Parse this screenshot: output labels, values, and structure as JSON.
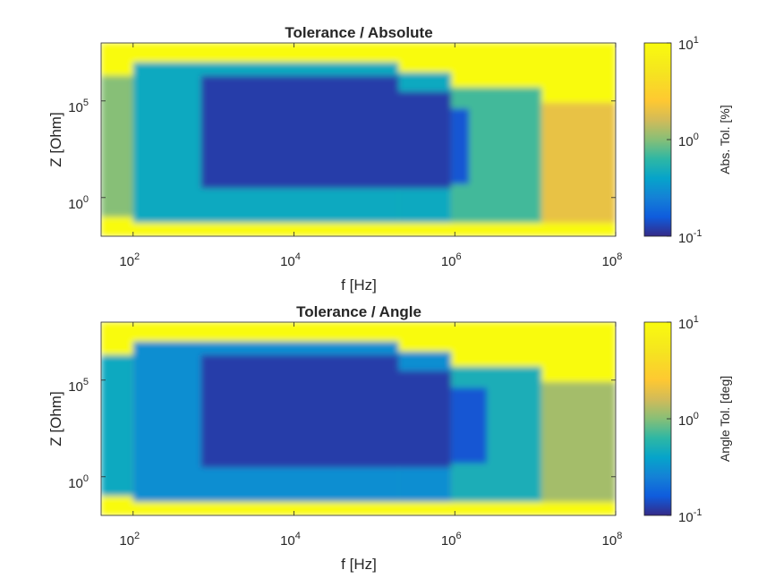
{
  "chart_data": [
    {
      "type": "heatmap",
      "title": "Tolerance / Absolute",
      "xlabel": "f [Hz]",
      "ylabel": "Z [Ohm]",
      "x_scale": "log",
      "y_scale": "log",
      "xlim": [
        40,
        100000000
      ],
      "ylim": [
        0.01,
        100000000
      ],
      "x_ticks": [
        {
          "value": 100,
          "base": "10",
          "exp": "2"
        },
        {
          "value": 10000,
          "base": "10",
          "exp": "4"
        },
        {
          "value": 1000000,
          "base": "10",
          "exp": "6"
        },
        {
          "value": 100000000,
          "base": "10",
          "exp": "8"
        }
      ],
      "y_ticks": [
        {
          "value": 1,
          "base": "10",
          "exp": "0"
        },
        {
          "value": 100000,
          "base": "10",
          "exp": "5"
        }
      ],
      "colorbar": {
        "label": "Abs. Tol. [%]",
        "scale": "log",
        "clim": [
          0.1,
          10
        ],
        "ticks": [
          {
            "value": 0.1,
            "base": "10",
            "exp": "-1"
          },
          {
            "value": 1,
            "base": "10",
            "exp": "0"
          },
          {
            "value": 10,
            "base": "10",
            "exp": "1"
          }
        ]
      },
      "colormap": "parula",
      "grid": false,
      "regions": [
        {
          "fmin": 40,
          "fmax": 100000000,
          "zmin": 0.01,
          "zmax": 100000000,
          "value": 10
        },
        {
          "fmin": 40,
          "fmax": 100,
          "zmin": 0.1,
          "zmax": 2000000,
          "value": 1.0
        },
        {
          "fmin": 100,
          "fmax": 200000,
          "zmin": 0.05,
          "zmax": 10000000,
          "value": 0.45
        },
        {
          "fmin": 200000,
          "fmax": 900000,
          "zmin": 0.05,
          "zmax": 3000000,
          "value": 0.45
        },
        {
          "fmin": 900000,
          "fmax": 12000000,
          "zmin": 0.05,
          "zmax": 500000,
          "value": 0.7
        },
        {
          "fmin": 12000000,
          "fmax": 100000000,
          "zmin": 0.05,
          "zmax": 80000,
          "value": 2.0
        },
        {
          "fmin": 700,
          "fmax": 200000,
          "zmin": 3,
          "zmax": 2000000,
          "value": 0.12
        },
        {
          "fmin": 200000,
          "fmax": 900000,
          "zmin": 3,
          "zmax": 300000,
          "value": 0.12
        },
        {
          "fmin": 900000,
          "fmax": 1500000,
          "zmin": 5,
          "zmax": 40000,
          "value": 0.15
        }
      ]
    },
    {
      "type": "heatmap",
      "title": "Tolerance / Angle",
      "xlabel": "f [Hz]",
      "ylabel": "Z [Ohm]",
      "x_scale": "log",
      "y_scale": "log",
      "xlim": [
        40,
        100000000
      ],
      "ylim": [
        0.01,
        100000000
      ],
      "x_ticks": [
        {
          "value": 100,
          "base": "10",
          "exp": "2"
        },
        {
          "value": 10000,
          "base": "10",
          "exp": "4"
        },
        {
          "value": 1000000,
          "base": "10",
          "exp": "6"
        },
        {
          "value": 100000000,
          "base": "10",
          "exp": "8"
        }
      ],
      "y_ticks": [
        {
          "value": 1,
          "base": "10",
          "exp": "0"
        },
        {
          "value": 100000,
          "base": "10",
          "exp": "5"
        }
      ],
      "colorbar": {
        "label": "Angle Tol. [deg]",
        "scale": "log",
        "clim": [
          0.1,
          10
        ],
        "ticks": [
          {
            "value": 0.1,
            "base": "10",
            "exp": "-1"
          },
          {
            "value": 1,
            "base": "10",
            "exp": "0"
          },
          {
            "value": 10,
            "base": "10",
            "exp": "1"
          }
        ]
      },
      "colormap": "parula",
      "grid": false,
      "regions": [
        {
          "fmin": 40,
          "fmax": 100000000,
          "zmin": 0.01,
          "zmax": 100000000,
          "value": 10
        },
        {
          "fmin": 40,
          "fmax": 100,
          "zmin": 0.1,
          "zmax": 2000000,
          "value": 0.45
        },
        {
          "fmin": 100,
          "fmax": 200000,
          "zmin": 0.05,
          "zmax": 10000000,
          "value": 0.3
        },
        {
          "fmin": 200000,
          "fmax": 900000,
          "zmin": 0.05,
          "zmax": 3000000,
          "value": 0.3
        },
        {
          "fmin": 900000,
          "fmax": 12000000,
          "zmin": 0.05,
          "zmax": 500000,
          "value": 0.5
        },
        {
          "fmin": 12000000,
          "fmax": 100000000,
          "zmin": 0.05,
          "zmax": 80000,
          "value": 1.2
        },
        {
          "fmin": 700,
          "fmax": 200000,
          "zmin": 3,
          "zmax": 2000000,
          "value": 0.12
        },
        {
          "fmin": 200000,
          "fmax": 900000,
          "zmin": 3,
          "zmax": 300000,
          "value": 0.12
        },
        {
          "fmin": 900000,
          "fmax": 2500000,
          "zmin": 5,
          "zmax": 40000,
          "value": 0.15
        }
      ]
    }
  ]
}
